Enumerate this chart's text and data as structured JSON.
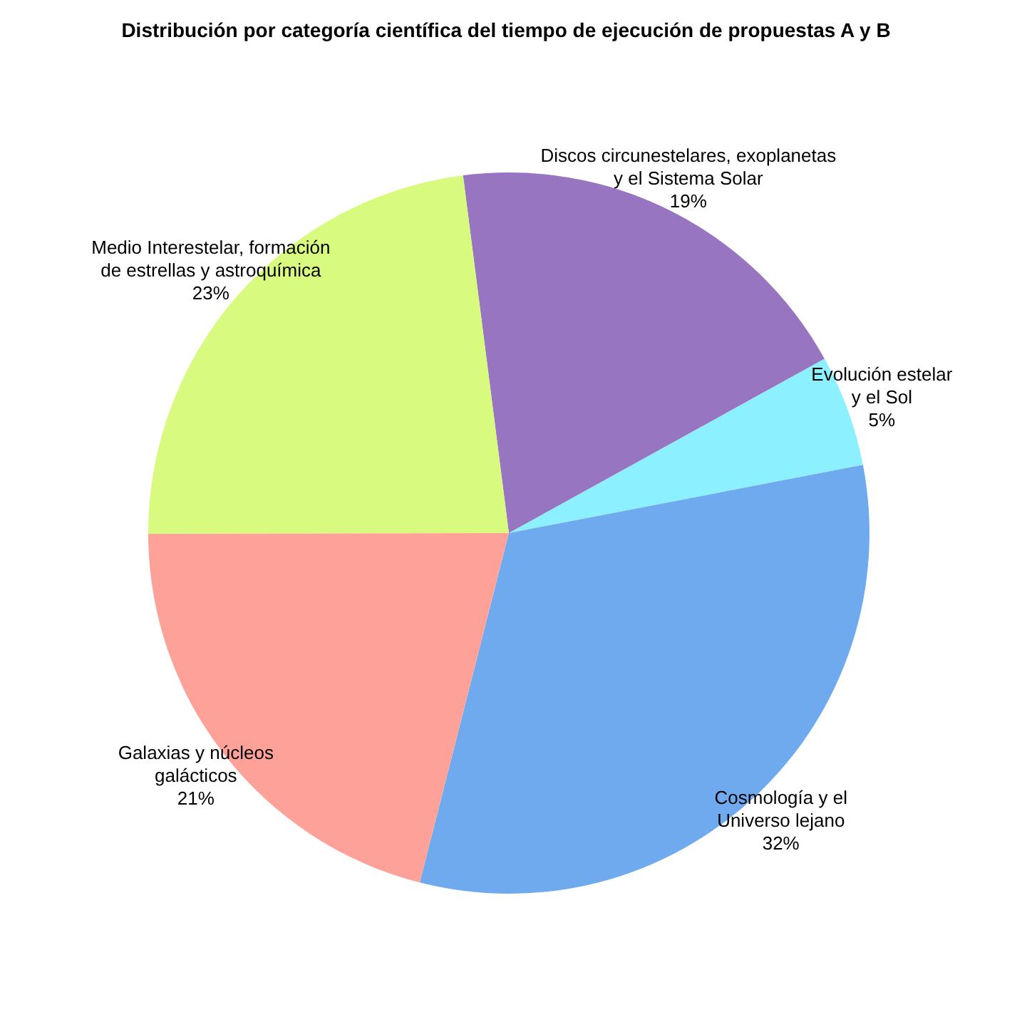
{
  "chart_data": {
    "type": "pie",
    "title": "Distribución por categoría científica del tiempo de ejecución de propuestas A y B",
    "categories": [
      "Discos circunestelares, exoplanetas\ny el Sistema Solar",
      "Evolución estelar\ny el Sol",
      "Cosmología y el\nUniverso lejano",
      "Galaxias y núcleos\ngalácticos",
      "Medio Interestelar, formación\nde estrellas y astroquímica"
    ],
    "values": [
      19,
      5,
      32,
      21,
      23
    ],
    "colors": [
      "#9775c1",
      "#8df0fe",
      "#6faaee",
      "#fea199",
      "#d8fb7f"
    ],
    "value_labels": [
      "19%",
      "5%",
      "32%",
      "21%",
      "23%"
    ]
  }
}
